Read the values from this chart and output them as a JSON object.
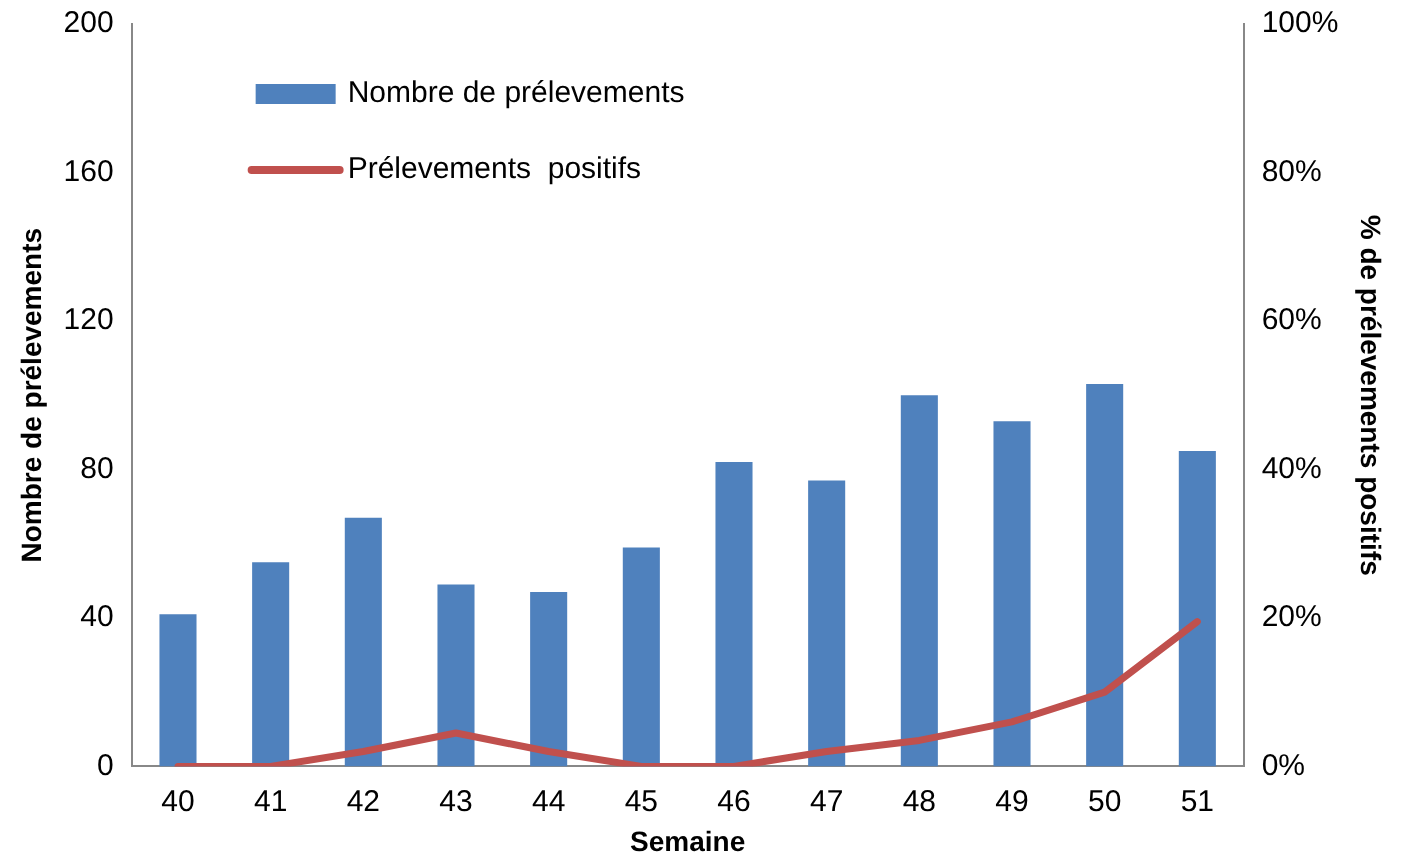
{
  "chart_data": {
    "type": "bar",
    "xlabel": "Semaine",
    "ylabel": "Nombre de prélevements",
    "y2label": "% de prélevements positifs",
    "categories": [
      "40",
      "41",
      "42",
      "43",
      "44",
      "45",
      "46",
      "47",
      "48",
      "49",
      "50",
      "51"
    ],
    "series": [
      {
        "name": "Nombre de prélevements",
        "color": "#4f81bd",
        "values": [
          41,
          55,
          67,
          49,
          47,
          59,
          82,
          77,
          100,
          93,
          103,
          85
        ]
      },
      {
        "name": "Prélevements  positifs",
        "type": "line",
        "axis": "y2",
        "color": "#c0504d",
        "values": [
          0,
          0,
          2,
          4.5,
          2,
          0,
          0,
          2,
          3.5,
          6,
          10,
          19.5
        ]
      }
    ],
    "ylim": [
      0,
      200
    ],
    "yticks": [
      0,
      40,
      80,
      120,
      160,
      200
    ],
    "y2lim": [
      0,
      100
    ],
    "y2ticks": [
      {
        "value": 0,
        "label": "0%"
      },
      {
        "value": 20,
        "label": "20%"
      },
      {
        "value": 40,
        "label": "40%"
      },
      {
        "value": 60,
        "label": "60%"
      },
      {
        "value": 80,
        "label": "80%"
      },
      {
        "value": 100,
        "label": "100%"
      }
    ],
    "grid": false,
    "legend": "top left",
    "marker": "none",
    "line_style": "solid"
  }
}
